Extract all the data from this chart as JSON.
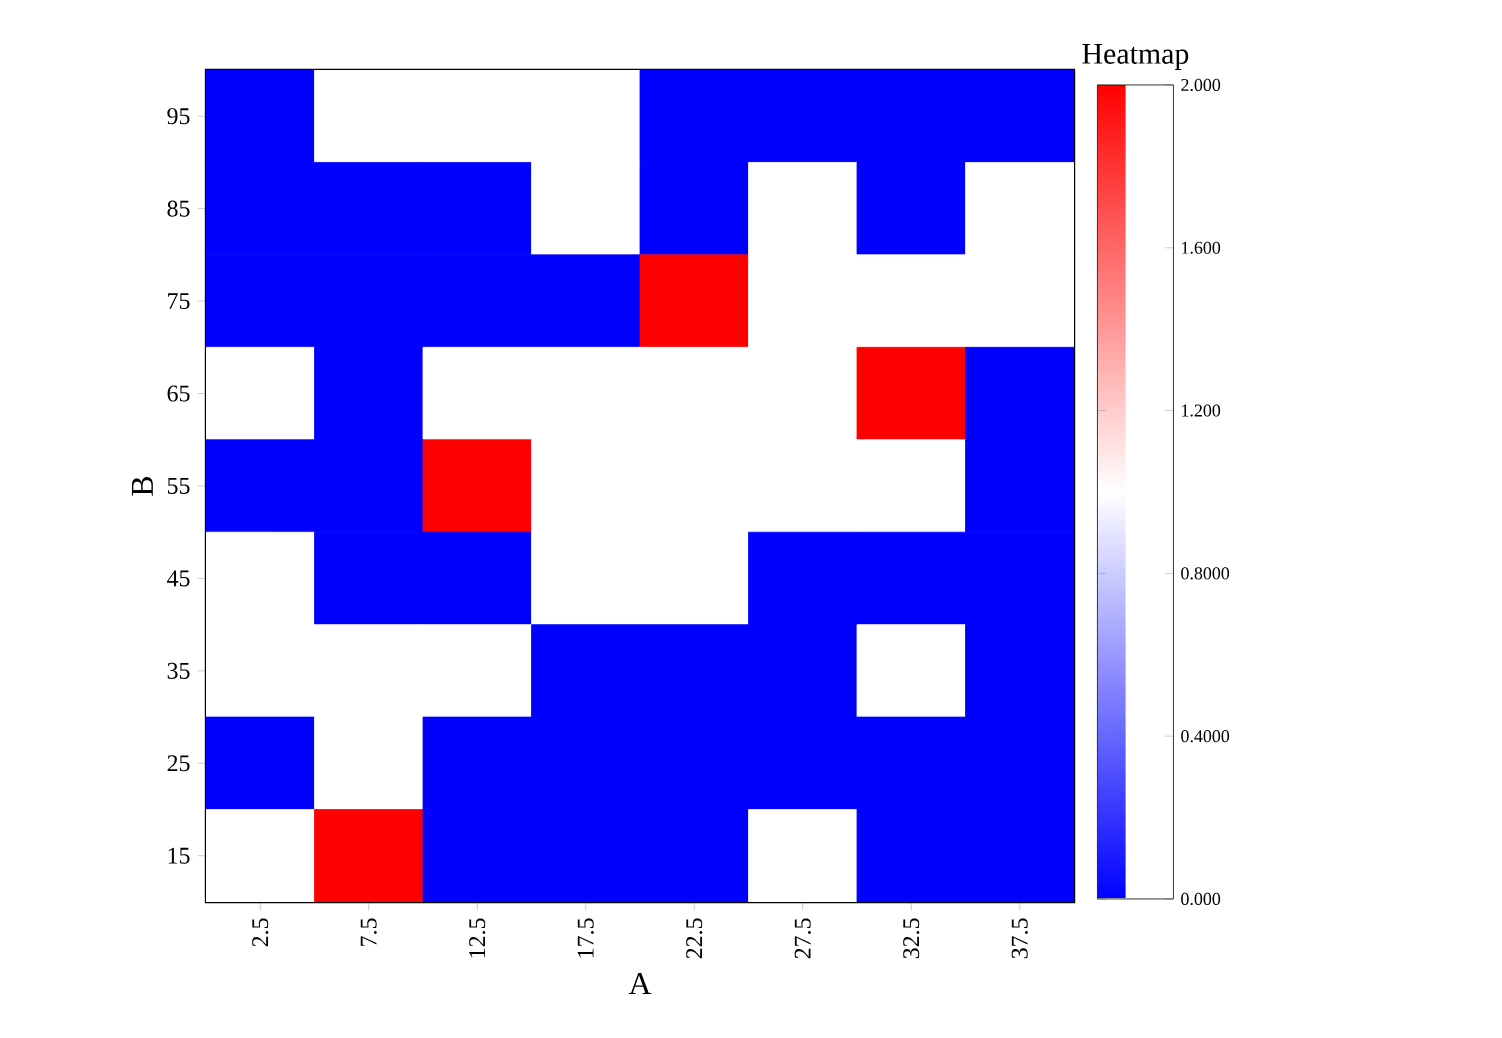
{
  "chart_data": {
    "type": "heatmap",
    "xlabel": "A",
    "ylabel": "B",
    "clabel": "Heatmap",
    "categories": [
      "2.5",
      "7.5",
      "12.5",
      "17.5",
      "22.5",
      "27.5",
      "32.5",
      "37.5"
    ],
    "y_categories": [
      "95",
      "85",
      "75",
      "65",
      "55",
      "45",
      "35",
      "25",
      "15"
    ],
    "cells": [
      [
        0,
        1,
        1,
        1,
        0,
        0,
        0,
        0
      ],
      [
        0,
        0,
        0,
        1,
        0,
        1,
        0,
        1
      ],
      [
        0,
        0,
        0,
        0,
        2,
        1,
        1,
        1
      ],
      [
        1,
        0,
        1,
        1,
        1,
        1,
        2,
        0
      ],
      [
        0,
        0,
        2,
        1,
        1,
        1,
        1,
        0
      ],
      [
        1,
        0,
        0,
        1,
        1,
        0,
        0,
        0
      ],
      [
        1,
        1,
        1,
        0,
        0,
        0,
        1,
        0
      ],
      [
        0,
        1,
        0,
        0,
        0,
        0,
        0,
        0
      ],
      [
        1,
        2,
        0,
        0,
        0,
        1,
        0,
        0
      ]
    ],
    "clim": [
      0,
      2
    ],
    "cticks": [
      {
        "value": 0,
        "label": "0.000"
      },
      {
        "value": 0.4,
        "label": "0.4000"
      },
      {
        "value": 0.8,
        "label": "0.8000"
      },
      {
        "value": 1.2,
        "label": "1.200"
      },
      {
        "value": 1.6,
        "label": "1.600"
      },
      {
        "value": 2,
        "label": "2.000"
      }
    ]
  }
}
